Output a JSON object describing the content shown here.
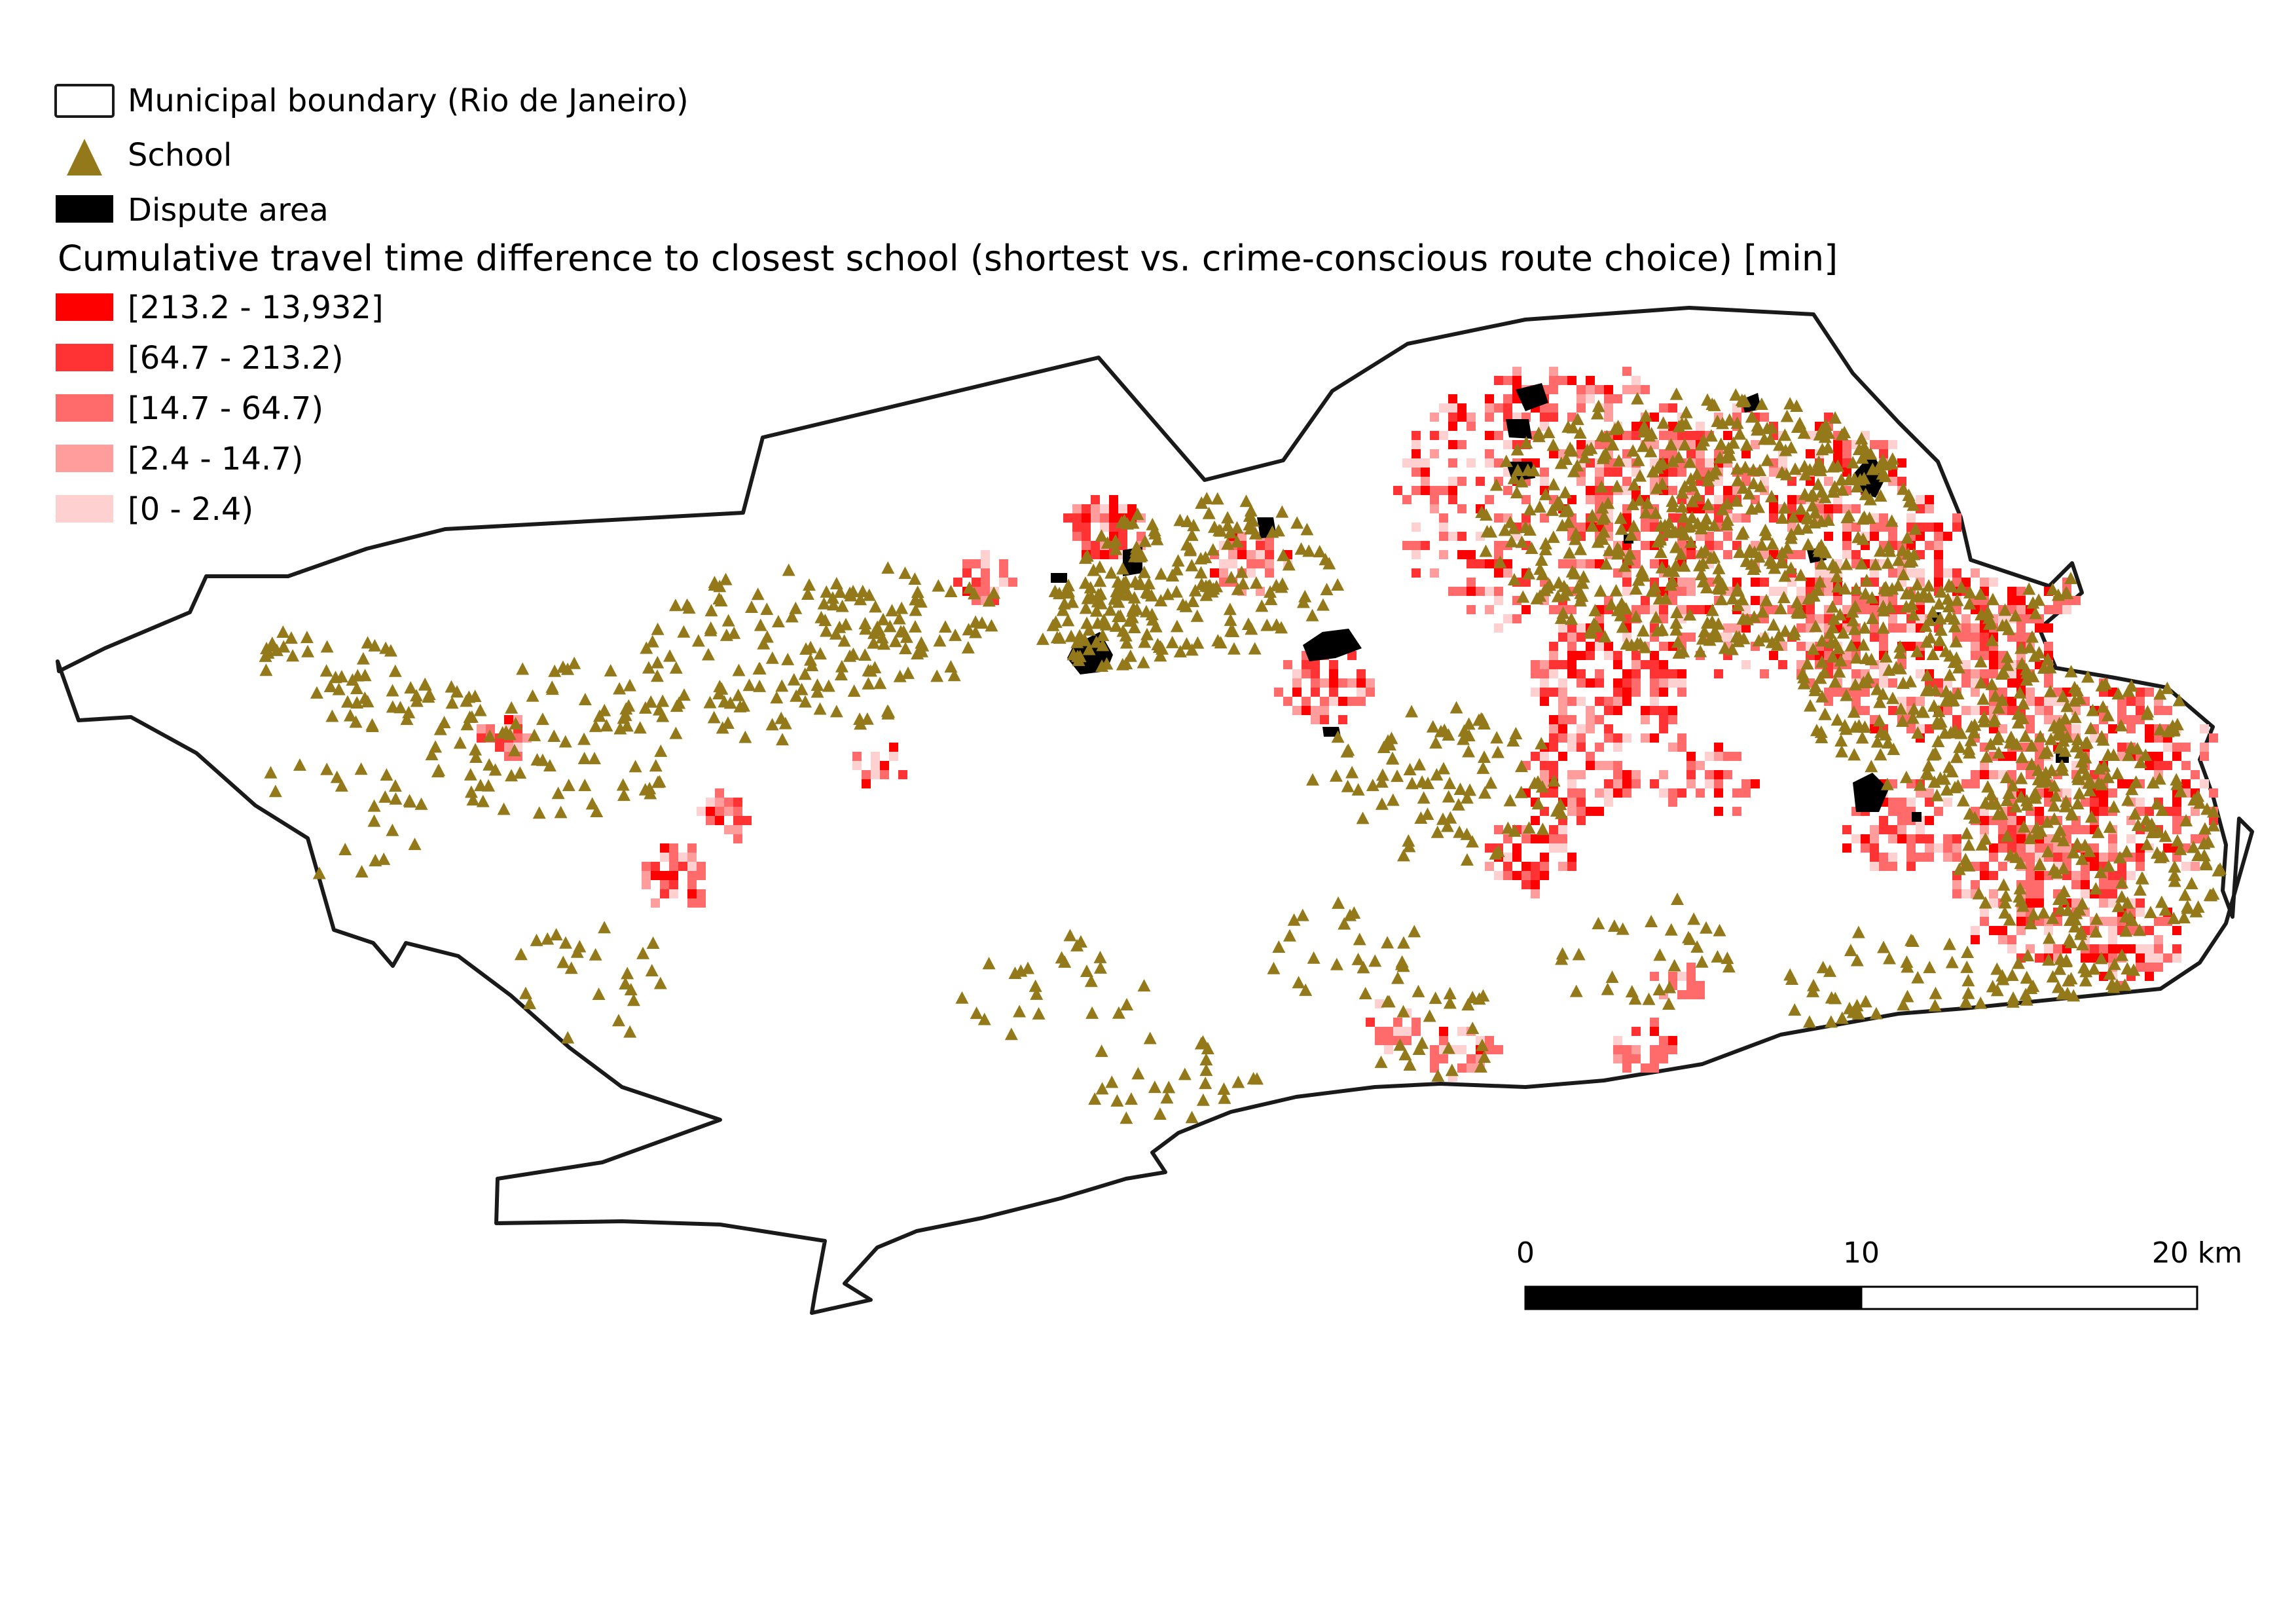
{
  "legend": {
    "boundary_label": "Municipal boundary (Rio de Janeiro)",
    "school_label": "School",
    "dispute_label": "Dispute area",
    "title": "Cumulative travel time difference to closest school (shortest vs. crime-conscious route choice) [min]",
    "classes": [
      {
        "label": "[213.2 - 13,932]",
        "color": "#ff0000"
      },
      {
        "label": "[64.7 - 213.2)",
        "color": "#ff3333"
      },
      {
        "label": "[14.7 - 64.7)",
        "color": "#ff6b6b"
      },
      {
        "label": "[2.4 - 14.7)",
        "color": "#ff9d9d"
      },
      {
        "label": "[0 - 2.4)",
        "color": "#ffd0d0"
      }
    ]
  },
  "scale_bar": {
    "labels": [
      "0",
      "10",
      "20 km"
    ],
    "values_km": [
      0,
      10,
      20
    ]
  },
  "colors": {
    "school": "#94791a",
    "dispute": "#000000",
    "boundary_stroke": "#1a1a1a",
    "boundary_fill": "#ffffff"
  }
}
